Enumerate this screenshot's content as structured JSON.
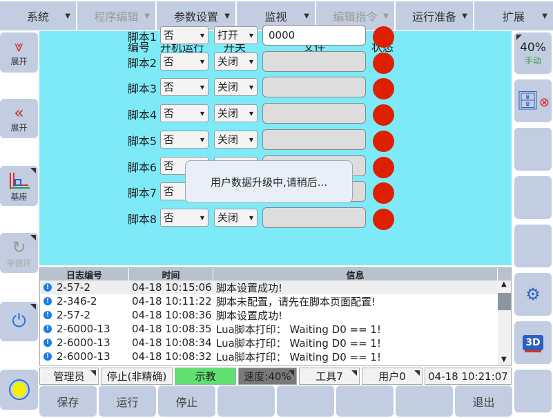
{
  "menu": [
    {
      "label": "系统",
      "disabled": false
    },
    {
      "label": "程序编辑",
      "disabled": true
    },
    {
      "label": "参数设置",
      "disabled": false
    },
    {
      "label": "监视",
      "disabled": false
    },
    {
      "label": "编辑指令",
      "disabled": true
    },
    {
      "label": "运行准备",
      "disabled": false
    },
    {
      "label": "扩展",
      "disabled": false
    }
  ],
  "left": {
    "expand1": "展开",
    "expand2": "展开",
    "base": "基座",
    "cycle": "单循环"
  },
  "right": {
    "speed": "40%",
    "mode": "手动"
  },
  "table_header": {
    "id": "编号",
    "boot": "开机运行",
    "switch": "开关",
    "file": "文件",
    "status": "状态"
  },
  "scripts": [
    {
      "label": "脚本1",
      "boot": "否",
      "switch": "打开",
      "file": "0000"
    },
    {
      "label": "脚本2",
      "boot": "否",
      "switch": "关闭",
      "file": ""
    },
    {
      "label": "脚本3",
      "boot": "否",
      "switch": "关闭",
      "file": ""
    },
    {
      "label": "脚本4",
      "boot": "否",
      "switch": "关闭",
      "file": ""
    },
    {
      "label": "脚本5",
      "boot": "否",
      "switch": "关闭",
      "file": ""
    },
    {
      "label": "脚本6",
      "boot": "否",
      "switch": "关闭",
      "file": ""
    },
    {
      "label": "脚本7",
      "boot": "否",
      "switch": "关闭",
      "file": ""
    },
    {
      "label": "脚本8",
      "boot": "否",
      "switch": "关闭",
      "file": ""
    }
  ],
  "status_color": "#dd2000",
  "dialog": "用户数据升级中,请稍后...",
  "log": {
    "headers": [
      "日志编号",
      "时间",
      "信息"
    ],
    "rows": [
      {
        "id": "2-57-2",
        "time": "04-18 10:15:06",
        "msg": "脚本设置成功!"
      },
      {
        "id": "2-346-2",
        "time": "04-18 10:11:22",
        "msg": "脚本未配置，请先在脚本页面配置!"
      },
      {
        "id": "2-57-2",
        "time": "04-18 10:08:36",
        "msg": "脚本设置成功!"
      },
      {
        "id": "2-6000-13",
        "time": "04-18 10:08:35",
        "msg": "Lua脚本打印： Waiting D0 == 1!"
      },
      {
        "id": "2-6000-13",
        "time": "04-18 10:08:34",
        "msg": "Lua脚本打印： Waiting D0 == 1!"
      },
      {
        "id": "2-6000-13",
        "time": "04-18 10:08:32",
        "msg": "Lua脚本打印： Waiting D0 == 1!"
      }
    ]
  },
  "statusbar": {
    "user": "管理员",
    "state": "停止(非精确)",
    "mode": "示教",
    "speed": "速度:40%",
    "tool": "工具7",
    "coord": "用户0",
    "clock": "04-18 10:21:07"
  },
  "buttons": {
    "save": "保存",
    "run": "运行",
    "stop": "停止",
    "exit": "退出"
  }
}
